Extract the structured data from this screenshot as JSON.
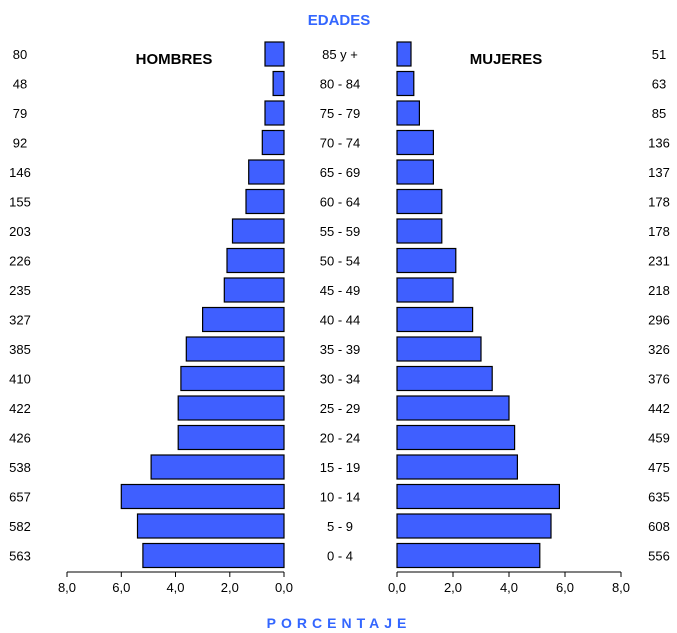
{
  "chart_data": {
    "type": "bar",
    "title": "EDADES",
    "xlabel": "PORCENTAJE",
    "left_label": "HOMBRES",
    "right_label": "MUJERES",
    "xlim": [
      0,
      8
    ],
    "ticks": [
      "8,0",
      "6,0",
      "4,0",
      "2,0",
      "0,0"
    ],
    "ticks_right": [
      "0,0",
      "2,0",
      "4,0",
      "6,0",
      "8,0"
    ],
    "bar_color": "#3f5fff",
    "title_color": "#3366ff",
    "categories": [
      "85 y +",
      "80 - 84",
      "75 - 79",
      "70 - 74",
      "65 - 69",
      "60 - 64",
      "55 - 59",
      "50 - 54",
      "45 - 49",
      "40 - 44",
      "35 - 39",
      "30 - 34",
      "25 - 29",
      "20 - 24",
      "15 - 19",
      "10 - 14",
      "5 - 9",
      "0 - 4"
    ],
    "series": [
      {
        "name": "HOMBRES",
        "counts": [
          "80",
          "48",
          "79",
          "92",
          "146",
          "155",
          "203",
          "226",
          "235",
          "327",
          "385",
          "410",
          "422",
          "426",
          "538",
          "657",
          "582",
          "563"
        ],
        "values": [
          0.7,
          0.4,
          0.7,
          0.8,
          1.3,
          1.4,
          1.9,
          2.1,
          2.2,
          3.0,
          3.6,
          3.8,
          3.9,
          3.9,
          4.9,
          6.0,
          5.4,
          5.2
        ]
      },
      {
        "name": "MUJERES",
        "counts": [
          "51",
          "63",
          "85",
          "136",
          "137",
          "178",
          "178",
          "231",
          "218",
          "296",
          "326",
          "376",
          "442",
          "459",
          "475",
          "635",
          "608",
          "556"
        ],
        "values": [
          0.5,
          0.6,
          0.8,
          1.3,
          1.3,
          1.6,
          1.6,
          2.1,
          2.0,
          2.7,
          3.0,
          3.4,
          4.0,
          4.2,
          4.3,
          5.8,
          5.5,
          5.1
        ]
      }
    ]
  }
}
